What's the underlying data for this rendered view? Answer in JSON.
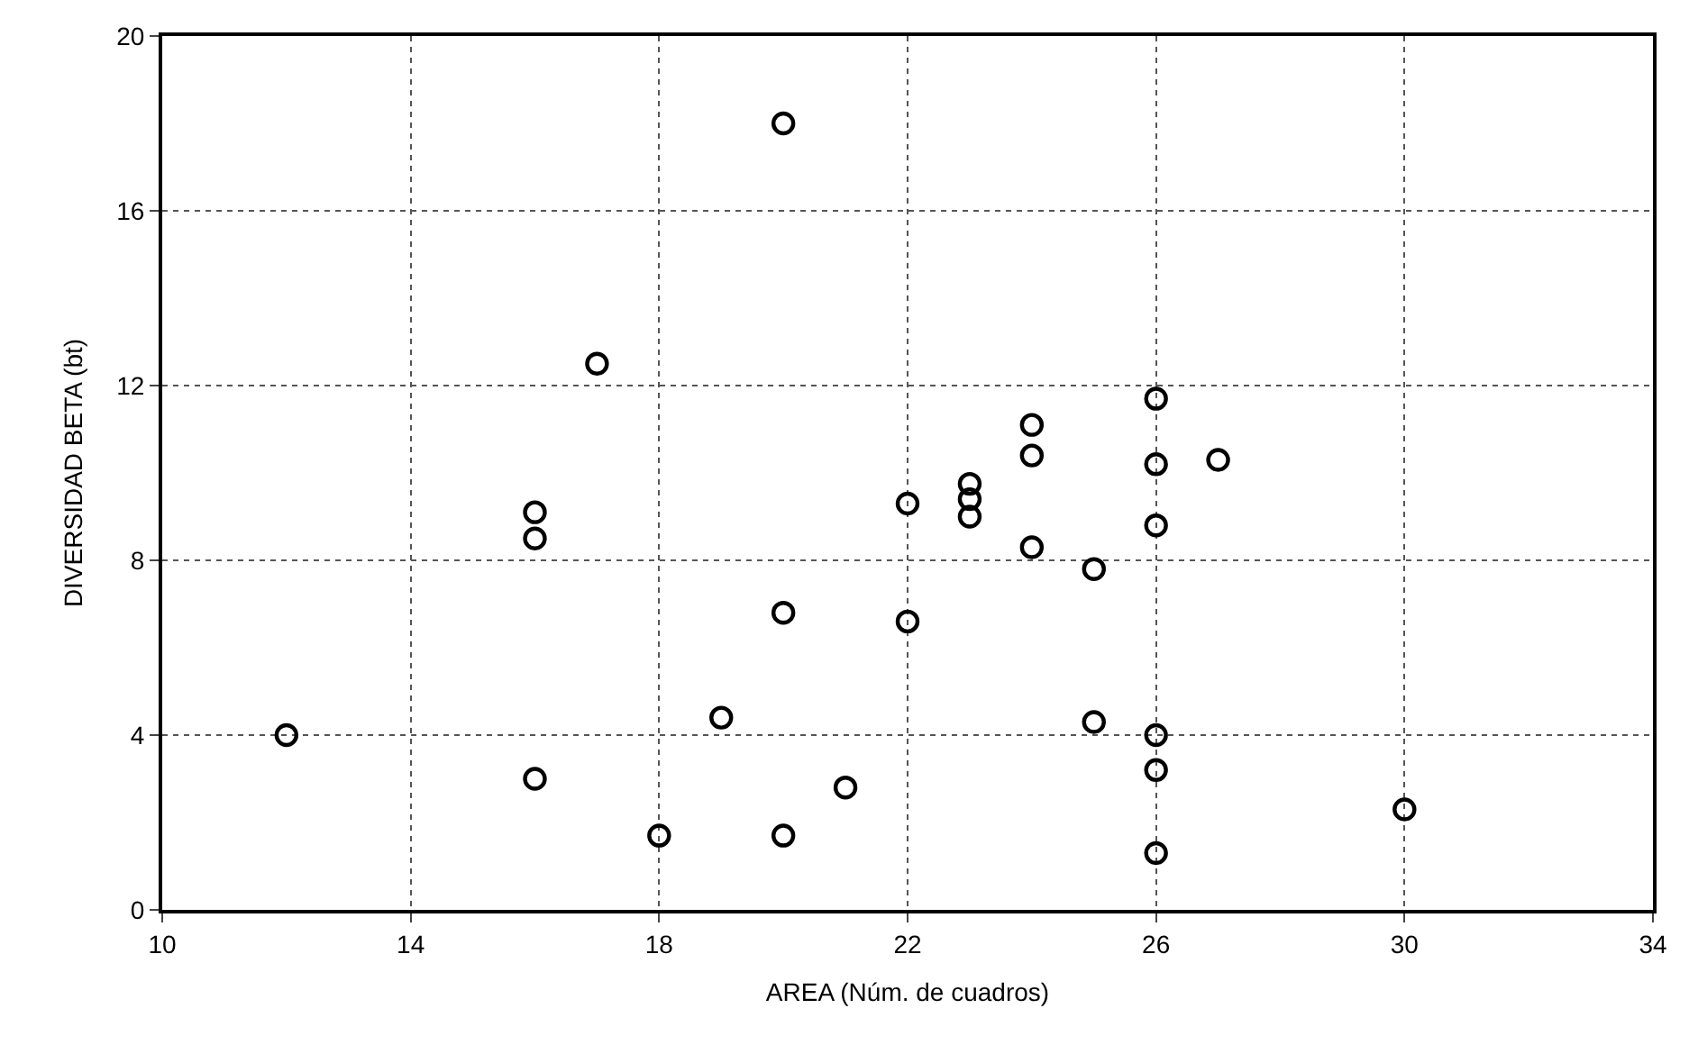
{
  "chart_data": {
    "type": "scatter",
    "xlabel": "AREA (Núm. de cuadros)",
    "ylabel": "DIVERSIDAD BETA (bt)",
    "x": [
      12,
      16,
      16,
      16,
      17,
      18,
      19,
      20,
      20,
      20,
      21,
      22,
      22,
      23,
      23,
      23,
      24,
      24,
      24,
      25,
      25,
      26,
      26,
      26,
      26,
      26,
      26,
      27,
      30
    ],
    "values": [
      4.0,
      3.0,
      8.5,
      9.1,
      12.5,
      1.7,
      4.4,
      18.0,
      6.8,
      1.7,
      2.8,
      9.3,
      6.6,
      9.75,
      9.4,
      9.0,
      11.1,
      10.4,
      8.3,
      7.8,
      4.3,
      11.7,
      10.2,
      8.8,
      4.0,
      3.2,
      1.3,
      10.3,
      2.3
    ],
    "color": "#000000",
    "marker": "circle",
    "xlim": [
      10,
      34
    ],
    "xticks": [
      10,
      14,
      18,
      22,
      26,
      30,
      34
    ],
    "ylim": [
      0,
      20
    ],
    "yticks": [
      0,
      4,
      8,
      12,
      16,
      20
    ],
    "grid": true,
    "legend": false
  }
}
